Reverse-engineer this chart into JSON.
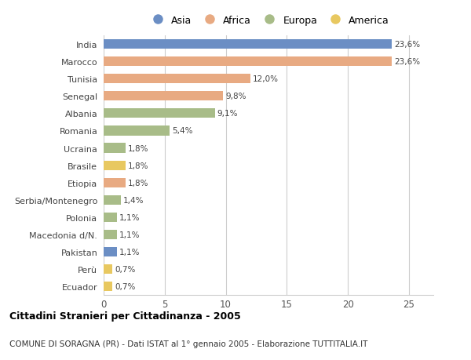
{
  "countries": [
    "India",
    "Marocco",
    "Tunisia",
    "Senegal",
    "Albania",
    "Romania",
    "Ucraina",
    "Brasile",
    "Etiopia",
    "Serbia/Montenegro",
    "Polonia",
    "Macedonia d/N.",
    "Pakistan",
    "Perù",
    "Ecuador"
  ],
  "values": [
    23.6,
    23.6,
    12.0,
    9.8,
    9.1,
    5.4,
    1.8,
    1.8,
    1.8,
    1.4,
    1.1,
    1.1,
    1.1,
    0.7,
    0.7
  ],
  "labels": [
    "23,6%",
    "23,6%",
    "12,0%",
    "9,8%",
    "9,1%",
    "5,4%",
    "1,8%",
    "1,8%",
    "1,8%",
    "1,4%",
    "1,1%",
    "1,1%",
    "1,1%",
    "0,7%",
    "0,7%"
  ],
  "continents": [
    "Asia",
    "Africa",
    "Africa",
    "Africa",
    "Europa",
    "Europa",
    "Europa",
    "America",
    "Africa",
    "Europa",
    "Europa",
    "Europa",
    "Asia",
    "America",
    "America"
  ],
  "colors": {
    "Asia": "#6b8ec4",
    "Africa": "#e8aa82",
    "Europa": "#a8bc88",
    "America": "#e8c860"
  },
  "legend_order": [
    "Asia",
    "Africa",
    "Europa",
    "America"
  ],
  "title": "Cittadini Stranieri per Cittadinanza - 2005",
  "subtitle": "COMUNE DI SORAGNA (PR) - Dati ISTAT al 1° gennaio 2005 - Elaborazione TUTTITALIA.IT",
  "xlim": [
    0,
    27
  ],
  "xticks": [
    0,
    5,
    10,
    15,
    20,
    25
  ],
  "background_color": "#ffffff",
  "bar_height": 0.55,
  "grid_color": "#cccccc"
}
